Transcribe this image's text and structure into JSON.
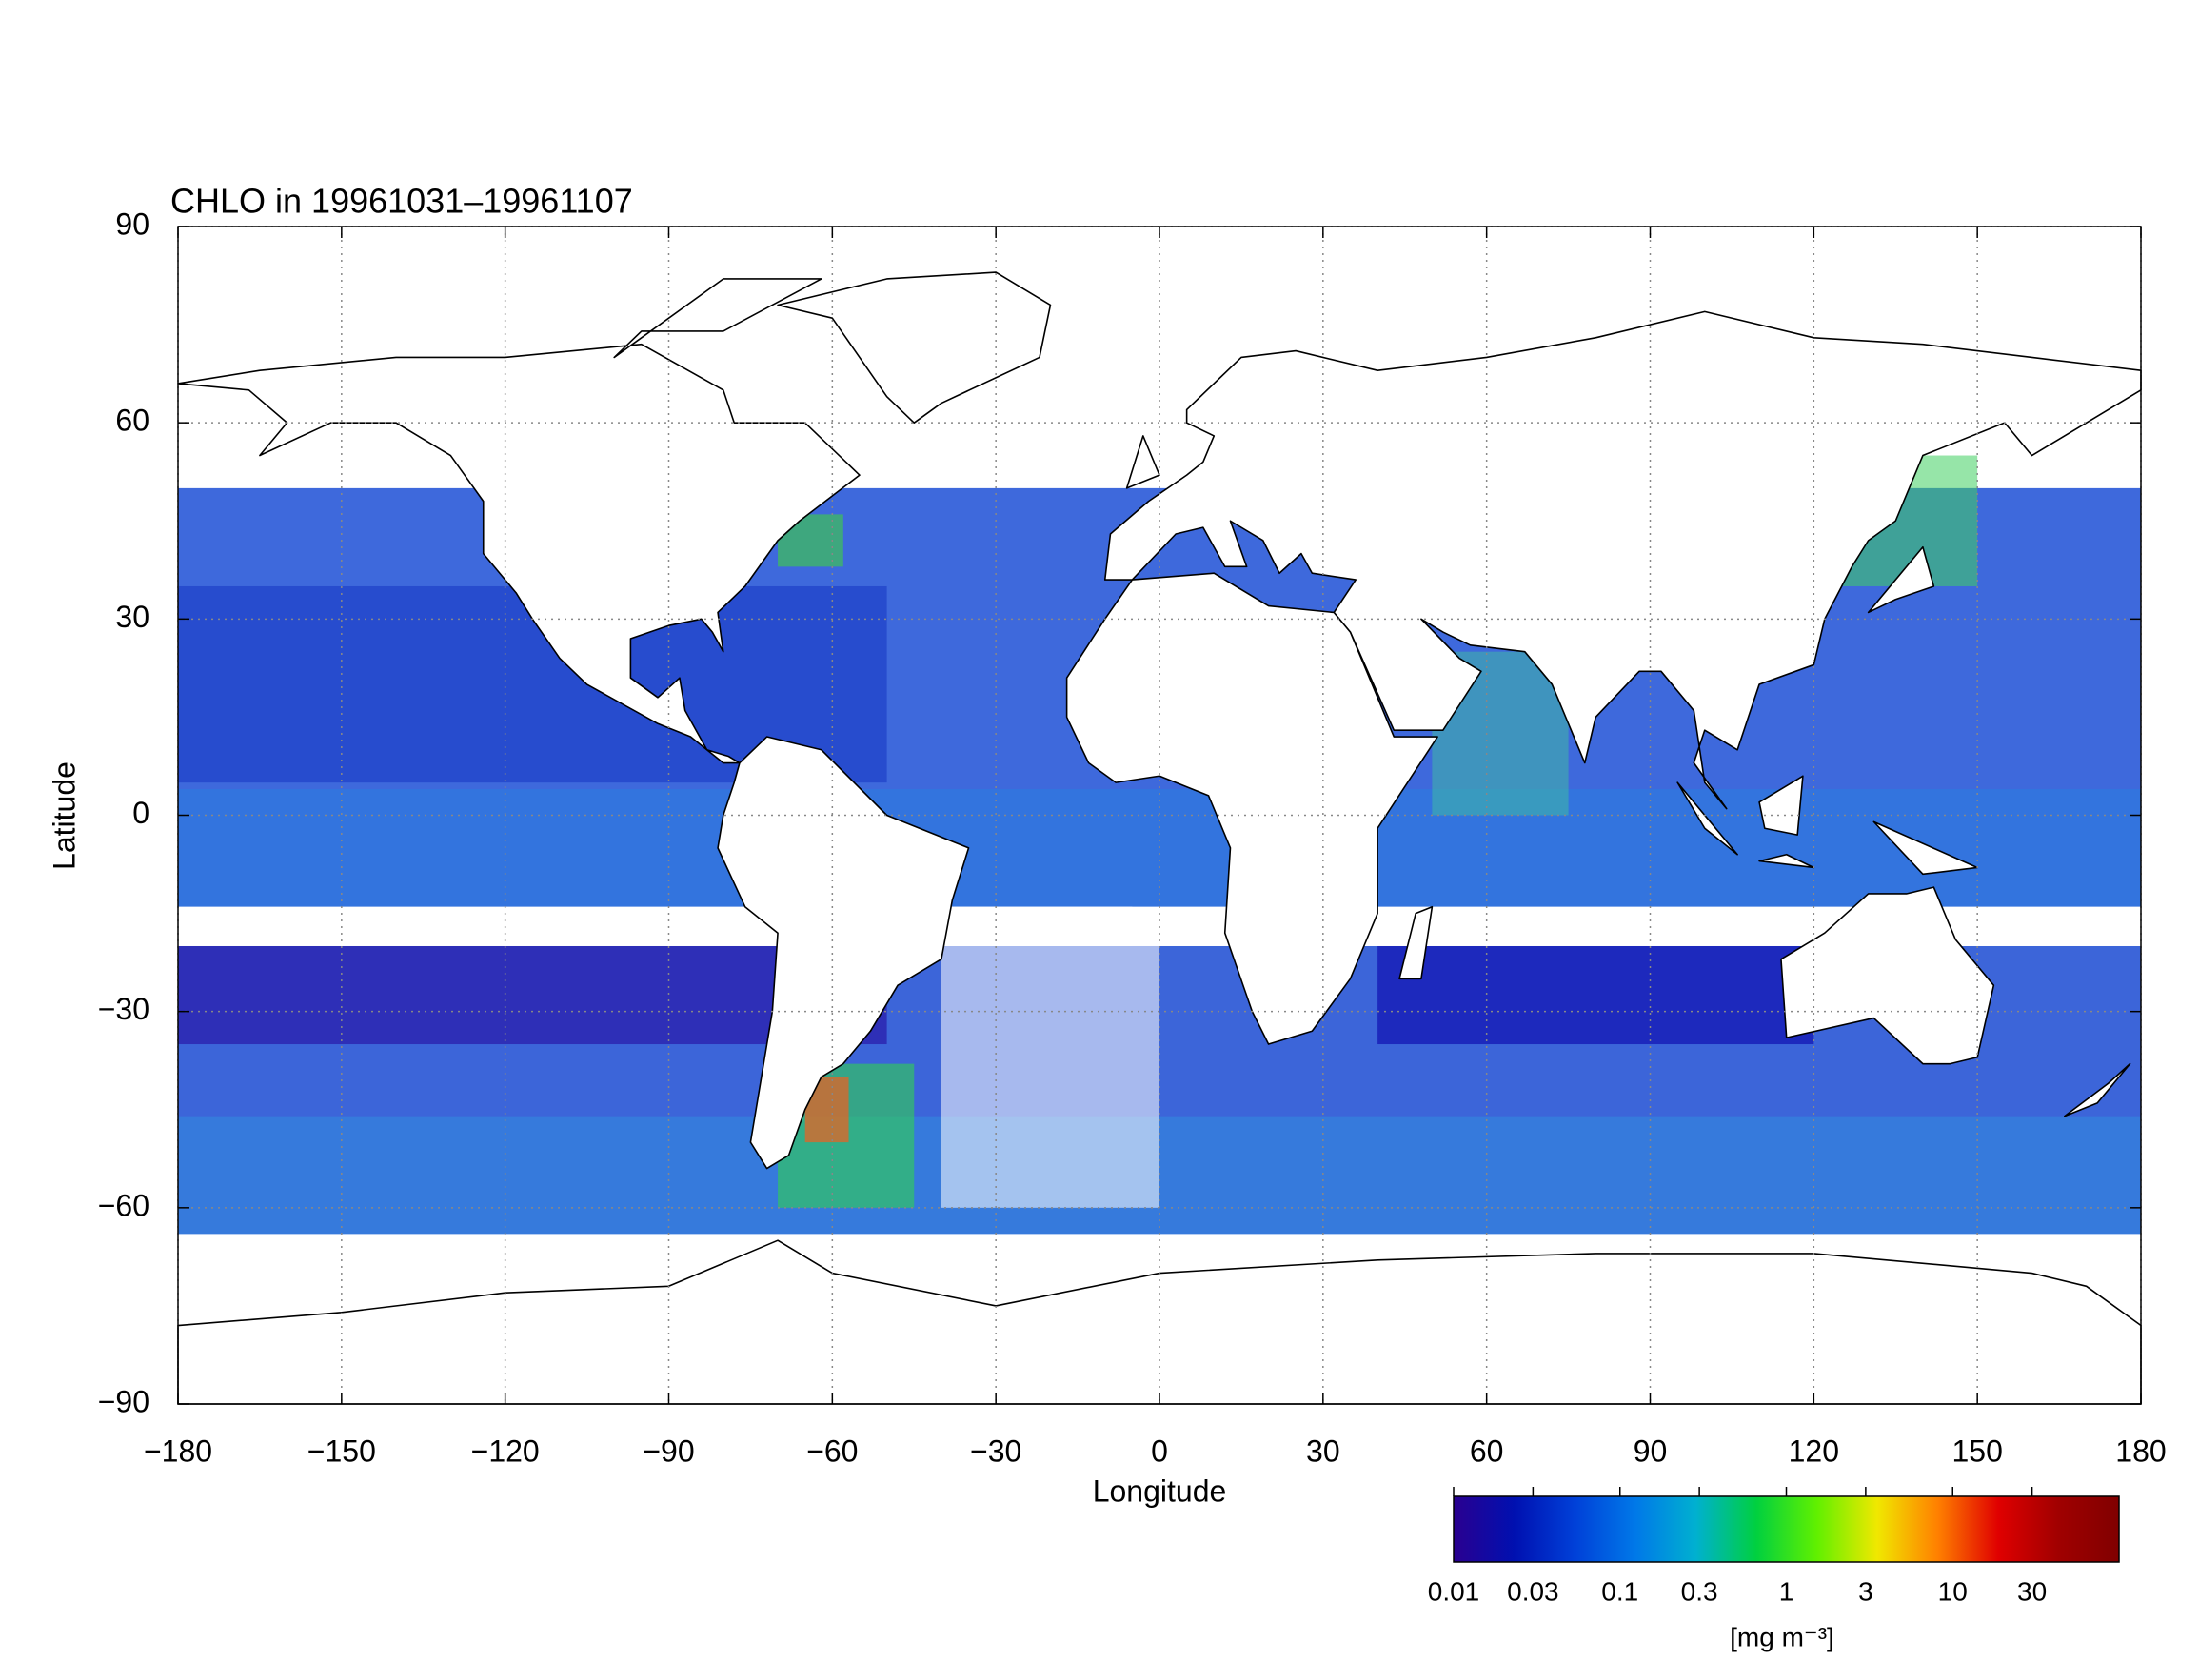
{
  "chart_data": {
    "type": "map",
    "title": "CHLO in 19961031–19961107",
    "x_label": "Longitude",
    "y_label": "Latitude",
    "xlim": [
      -180,
      180
    ],
    "ylim": [
      -90,
      90
    ],
    "xticks": [
      {
        "value": -180,
        "label": "−180"
      },
      {
        "value": -150,
        "label": "−150"
      },
      {
        "value": -120,
        "label": "−120"
      },
      {
        "value": -90,
        "label": "−90"
      },
      {
        "value": -60,
        "label": "−60"
      },
      {
        "value": -30,
        "label": "−30"
      },
      0,
      30,
      60,
      90,
      120,
      150,
      180
    ],
    "yticks": [
      {
        "value": -90,
        "label": "−90"
      },
      {
        "value": -60,
        "label": "−60"
      },
      {
        "value": -30,
        "label": "−30"
      },
      0,
      30,
      60,
      90
    ],
    "grid": true,
    "colorbar": {
      "scale": "log",
      "clim": [
        0.01,
        100
      ],
      "ticks": [
        0.01,
        0.03,
        0.1,
        0.3,
        1,
        3,
        10,
        30
      ],
      "label": "[mg m⁻³]",
      "colormap": [
        "#2a0090",
        "#0010b0",
        "#0040d8",
        "#0078e8",
        "#00b0d0",
        "#00d040",
        "#60f000",
        "#f0e800",
        "#ff8000",
        "#e00000",
        "#a00000",
        "#800000"
      ]
    }
  }
}
